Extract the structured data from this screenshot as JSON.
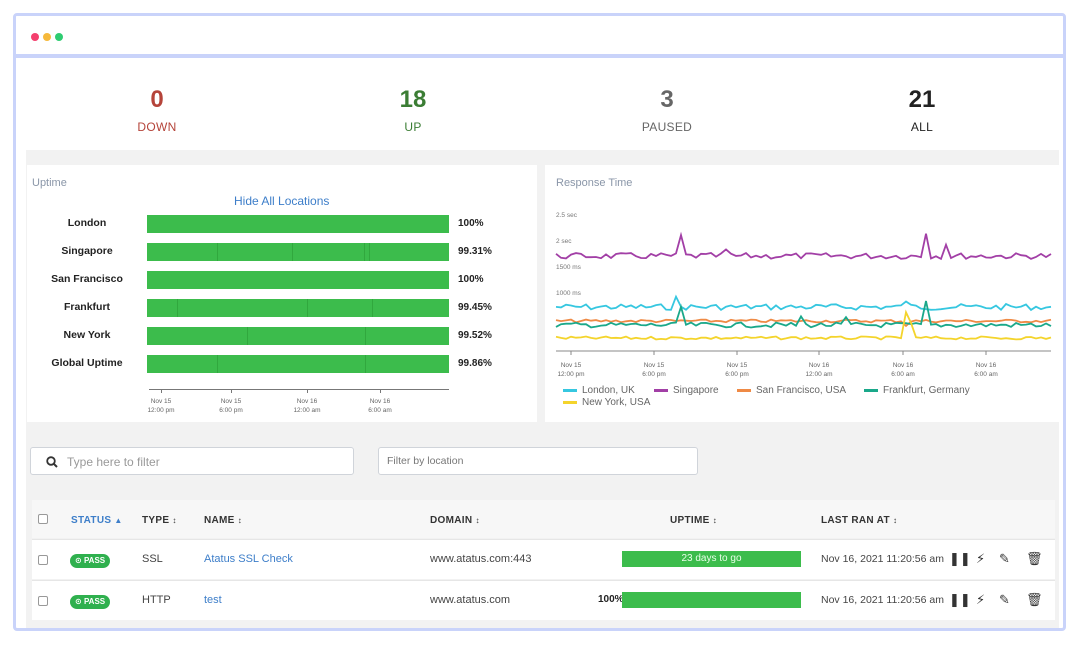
{
  "summary": [
    {
      "value": "0",
      "label": "DOWN",
      "color": "#b5443a"
    },
    {
      "value": "18",
      "label": "UP",
      "color": "#3b7d34"
    },
    {
      "value": "3",
      "label": "PAUSED",
      "color": "#666666"
    },
    {
      "value": "21",
      "label": "ALL",
      "color": "#222222"
    }
  ],
  "uptime": {
    "title": "Uptime",
    "hide_link": "Hide All Locations",
    "bar_color": "#3cbc4c",
    "locations": [
      {
        "name": "London",
        "value": "100%"
      },
      {
        "name": "Singapore",
        "value": "99.31%"
      },
      {
        "name": "San Francisco",
        "value": "100%"
      },
      {
        "name": "Frankfurt",
        "value": "99.45%"
      },
      {
        "name": "New York",
        "value": "99.52%"
      },
      {
        "name": "Global Uptime",
        "value": "99.86%"
      }
    ],
    "x_ticks": [
      {
        "line1": "Nov 15",
        "line2": "12:00 pm"
      },
      {
        "line1": "Nov 15",
        "line2": "6:00 pm"
      },
      {
        "line1": "Nov 16",
        "line2": "12:00 am"
      },
      {
        "line1": "Nov 16",
        "line2": "6:00 am"
      }
    ]
  },
  "response_time": {
    "title": "Response Time",
    "y_labels": [
      "2.5 sec",
      "2 sec",
      "1500 ms",
      "1000 ms"
    ],
    "x_ticks": [
      {
        "line1": "Nov 15",
        "line2": "12:00 pm"
      },
      {
        "line1": "Nov 15",
        "line2": "6:00 pm"
      },
      {
        "line1": "Nov 15",
        "line2": "6:00 pm"
      },
      {
        "line1": "Nov 16",
        "line2": "12:00 am"
      },
      {
        "line1": "Nov 16",
        "line2": "6:00 am"
      },
      {
        "line1": "Nov 16",
        "line2": "6:00 am"
      }
    ],
    "series": [
      {
        "name": "London, UK",
        "color": "#36c7e0"
      },
      {
        "name": "Singapore",
        "color": "#a23fa6"
      },
      {
        "name": "San Francisco, USA",
        "color": "#ef8a45"
      },
      {
        "name": "Frankfurt, Germany",
        "color": "#1aa88a"
      },
      {
        "name": "New York, USA",
        "color": "#f4d42c"
      }
    ]
  },
  "filters": {
    "search_placeholder": "Type here to filter",
    "location_placeholder": "Filter by location"
  },
  "table": {
    "headers": {
      "status": "STATUS",
      "type": "TYPE",
      "name": "NAME",
      "domain": "DOMAIN",
      "uptime": "UPTIME",
      "last_ran": "LAST RAN AT"
    },
    "rows": [
      {
        "status": "PASS",
        "type": "SSL",
        "name": "Atatus SSL Check",
        "domain": "www.atatus.com:443",
        "uptime_pct": "",
        "uptime_text": "23 days to go",
        "last_ran": "Nov 16, 2021 11:20:56 am"
      },
      {
        "status": "PASS",
        "type": "HTTP",
        "name": "test",
        "domain": "www.atatus.com",
        "uptime_pct": "100%",
        "uptime_text": "",
        "last_ran": "Nov 16, 2021 11:20:56 am"
      }
    ]
  }
}
